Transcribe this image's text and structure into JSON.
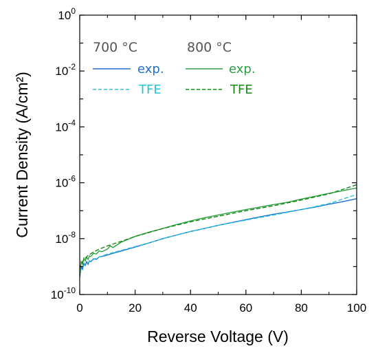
{
  "chart_data": {
    "type": "line",
    "xlabel": "Reverse Voltage (V)",
    "ylabel": "Current Density (A/cm²)",
    "xlim": [
      0,
      100
    ],
    "ylim_log10": [
      -10,
      0
    ],
    "y_scale": "log",
    "grid": false,
    "x_ticks": [
      0,
      20,
      40,
      60,
      80,
      100
    ],
    "x_tick_labels": [
      "0",
      "20",
      "40",
      "60",
      "80",
      "100"
    ],
    "y_ticks": [
      {
        "base": "10",
        "exp": "0"
      },
      {
        "base": "10",
        "exp": "-2"
      },
      {
        "base": "10",
        "exp": "-4"
      },
      {
        "base": "10",
        "exp": "-6"
      },
      {
        "base": "10",
        "exp": "-8"
      },
      {
        "base": "10",
        "exp": "-10"
      }
    ],
    "legend": {
      "placement": "top-left",
      "groups": [
        {
          "title": "700 °C",
          "entries": [
            {
              "label": "exp.",
              "color": "#1f6fd1",
              "dash": "solid"
            },
            {
              "label": "TFE",
              "color": "#22c4d8",
              "dash": "dashed"
            }
          ]
        },
        {
          "title": "800 °C",
          "entries": [
            {
              "label": "exp.",
              "color": "#2f9e44",
              "dash": "solid"
            },
            {
              "label": "TFE",
              "color": "#138a13",
              "dash": "dashed"
            }
          ]
        }
      ]
    },
    "series": [
      {
        "group": "700 °C",
        "label": "exp.",
        "color": "#1f6fd1",
        "dash": "solid",
        "x": [
          0,
          0.5,
          1,
          1.5,
          2,
          2.5,
          3,
          3.5,
          4,
          5,
          6,
          7,
          8,
          10,
          12,
          15,
          20,
          25,
          30,
          35,
          40,
          45,
          50,
          55,
          60,
          65,
          70,
          75,
          80,
          85,
          90,
          95,
          100
        ],
        "y": [
          4e-10,
          1e-09,
          8e-10,
          1.3e-09,
          1.1e-09,
          1.5e-09,
          1.2e-09,
          1.6e-09,
          1.5e-09,
          1.9e-09,
          1.8e-09,
          2.2e-09,
          2.3e-09,
          2.6e-09,
          3e-09,
          3.6e-09,
          5e-09,
          7e-09,
          1e-08,
          1.35e-08,
          1.8e-08,
          2.3e-08,
          3e-08,
          3.8e-08,
          4.8e-08,
          6e-08,
          7.5e-08,
          9e-08,
          1.1e-07,
          1.35e-07,
          1.7e-07,
          2.1e-07,
          2.7e-07
        ]
      },
      {
        "group": "700 °C",
        "label": "TFE",
        "color": "#22c4d8",
        "dash": "dashed",
        "x": [
          0,
          1,
          2,
          3,
          5,
          7,
          10,
          15,
          20,
          25,
          30,
          40,
          50,
          60,
          70,
          80,
          90,
          100
        ],
        "y": [
          6e-10,
          1e-09,
          1.2e-09,
          1.4e-09,
          1.8e-09,
          2.2e-09,
          2.8e-09,
          3.8e-09,
          5.2e-09,
          7e-09,
          1e-08,
          1.8e-08,
          3e-08,
          4.6e-08,
          7e-08,
          1.1e-07,
          1.8e-07,
          3.8e-07
        ]
      },
      {
        "group": "800 °C",
        "label": "exp.",
        "color": "#2f9e44",
        "dash": "solid",
        "x": [
          0,
          0.5,
          1,
          1.5,
          2,
          2.5,
          3,
          3.5,
          4,
          5,
          6,
          7,
          8,
          10,
          11,
          12,
          15,
          20,
          25,
          30,
          35,
          40,
          45,
          50,
          55,
          60,
          65,
          70,
          75,
          80,
          85,
          90,
          95,
          100
        ],
        "y": [
          5e-10,
          1.5e-09,
          1.2e-09,
          2e-09,
          1.6e-09,
          2.2e-09,
          1.8e-09,
          2.4e-09,
          2.3e-09,
          3e-09,
          2.8e-09,
          3.6e-09,
          3.4e-09,
          4.2e-09,
          5.5e-09,
          4.8e-09,
          7.5e-09,
          1.2e-08,
          1.7e-08,
          2.3e-08,
          3.2e-08,
          4.3e-08,
          5.6e-08,
          7e-08,
          8.8e-08,
          1.1e-07,
          1.35e-07,
          1.65e-07,
          2e-07,
          2.6e-07,
          3.3e-07,
          4.2e-07,
          5.2e-07,
          6.5e-07
        ]
      },
      {
        "group": "800 °C",
        "label": "TFE",
        "color": "#138a13",
        "dash": "dashed",
        "x": [
          0,
          1,
          2,
          3,
          5,
          7,
          10,
          15,
          20,
          25,
          30,
          40,
          50,
          60,
          70,
          80,
          90,
          100
        ],
        "y": [
          8e-10,
          1.5e-09,
          2e-09,
          2.5e-09,
          3.3e-09,
          4.2e-09,
          5.5e-09,
          8e-09,
          1.2e-08,
          1.65e-08,
          2.3e-08,
          4e-08,
          6.3e-08,
          1e-07,
          1.5e-07,
          2.4e-07,
          4e-07,
          8.5e-07
        ]
      }
    ]
  }
}
